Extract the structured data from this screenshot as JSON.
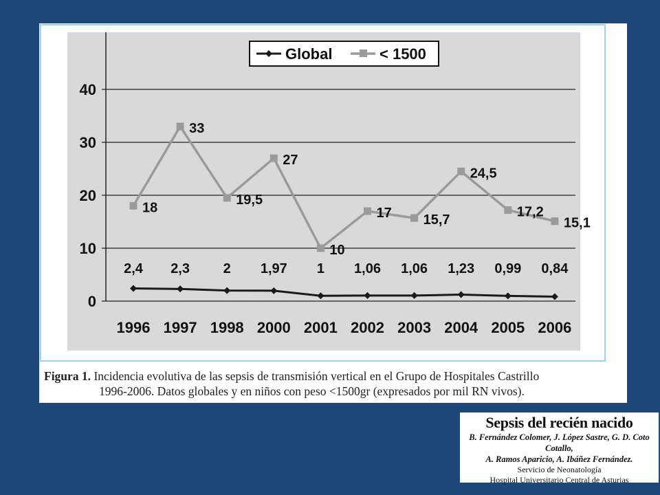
{
  "figure": {
    "caption_label": "Figura 1.",
    "caption_line1": "Incidencia evolutiva de las sepsis de transmisión vertical en el Grupo de Hospitales Castrillo",
    "caption_line2": "1996-2006. Datos globales y en niños con peso <1500gr (expresados por mil RN vivos)."
  },
  "credit": {
    "title": "Sepsis del recién nacido",
    "authors_line1": "B. Fernández Colomer, J. López Sastre, G. D. Coto Cotallo,",
    "authors_line2": "A. Ramos Aparicio, A. Ibáñez Fernández.",
    "service": "Servicio de Neonatología",
    "hospital": "Hospital Universitario Central de Asturias"
  },
  "colors": {
    "background": "#1f4878",
    "plot_area": "#d9d9d9",
    "global_series": "#1a1a1a",
    "lt1500_series": "#9a9a9a",
    "frame_border": "#9ad4ea"
  },
  "chart_data": {
    "type": "line",
    "categories": [
      "1996",
      "1997",
      "1998",
      "2000",
      "2001",
      "2002",
      "2003",
      "2004",
      "2005",
      "2006"
    ],
    "series": [
      {
        "name": "Global",
        "values": [
          2.4,
          2.3,
          2,
          1.97,
          1,
          1.06,
          1.06,
          1.23,
          0.99,
          0.84
        ],
        "labels": [
          "2,4",
          "2,3",
          "2",
          "1,97",
          "1",
          "1,06",
          "1,06",
          "1,23",
          "0,99",
          "0,84"
        ]
      },
      {
        "name": "< 1500",
        "values": [
          18,
          33,
          19.5,
          27,
          10,
          17,
          15.7,
          24.5,
          17.2,
          15.1
        ],
        "labels": [
          "18",
          "33",
          "19,5",
          "27",
          "10",
          "17",
          "15,7",
          "24,5",
          "17,2",
          "15,1"
        ]
      }
    ],
    "yticks": [
      "0",
      "10",
      "20",
      "30",
      "40"
    ],
    "ylim": [
      0,
      40
    ],
    "grid": true,
    "legend": "top-center"
  }
}
